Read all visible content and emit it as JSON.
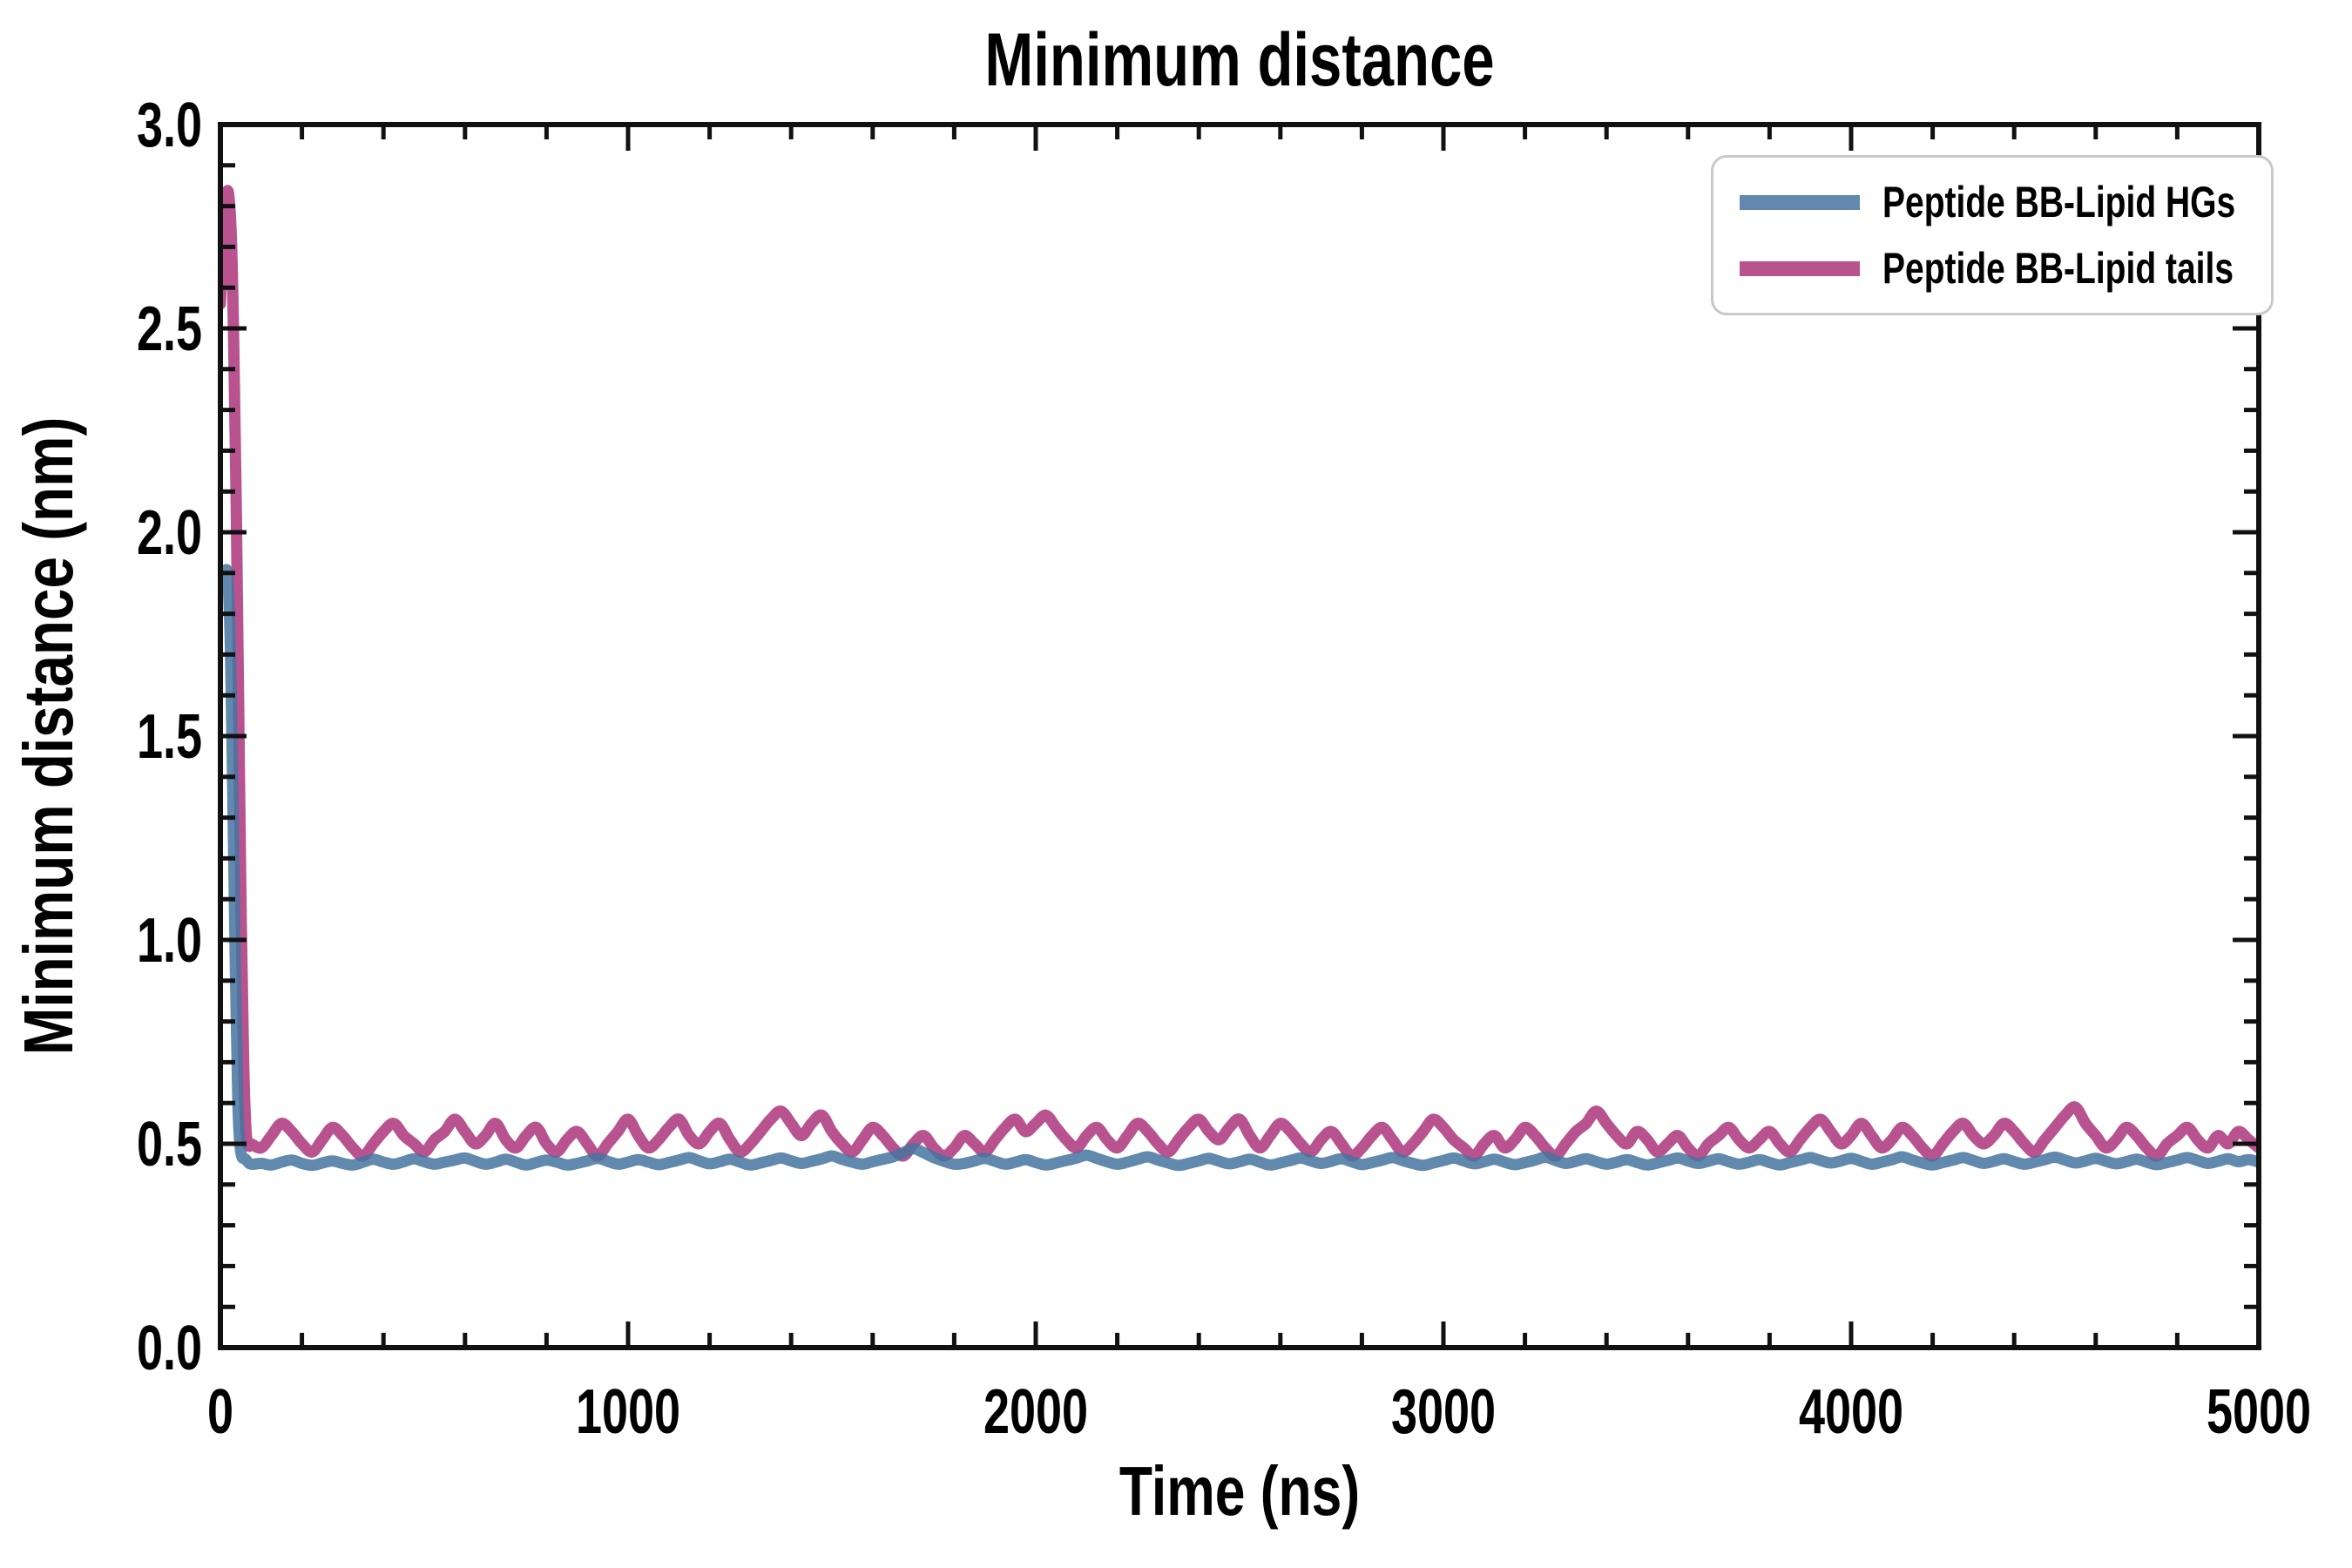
{
  "chart_data": {
    "type": "line",
    "title": "Minimum distance",
    "xlabel": "Time (ns)",
    "ylabel": "Minimum distance (nm)",
    "xlim": [
      0,
      5000
    ],
    "ylim": [
      0.0,
      3.0
    ],
    "x_major_ticks": [
      0,
      1000,
      2000,
      3000,
      4000,
      5000
    ],
    "x_tick_labels": [
      "0",
      "1000",
      "2000",
      "3000",
      "4000",
      "5000"
    ],
    "x_minor_step": 200,
    "y_major_ticks": [
      0.0,
      0.5,
      1.0,
      1.5,
      2.0,
      2.5,
      3.0
    ],
    "y_tick_labels": [
      "0.0",
      "0.5",
      "1.0",
      "1.5",
      "2.0",
      "2.5",
      "3.0"
    ],
    "y_minor_step": 0.1,
    "grid": false,
    "legend_position": "upper right",
    "axis_color": "#111111",
    "series": [
      {
        "name": "Peptide BB-Lipid tails",
        "color": "#b8538f",
        "opacity": 1.0,
        "transient_t": [
          0,
          8,
          14,
          20,
          27,
          33,
          39,
          45,
          51,
          57,
          63,
          70
        ],
        "transient_v": [
          2.56,
          2.74,
          2.82,
          2.83,
          2.72,
          2.45,
          2.05,
          1.55,
          1.05,
          0.7,
          0.53,
          0.495
        ],
        "steady_t0": 75,
        "steady_dt": 25,
        "steady_v": [
          0.5,
          0.49,
          0.52,
          0.55,
          0.53,
          0.5,
          0.48,
          0.51,
          0.54,
          0.52,
          0.49,
          0.47,
          0.5,
          0.53,
          0.55,
          0.52,
          0.5,
          0.48,
          0.51,
          0.53,
          0.56,
          0.53,
          0.5,
          0.52,
          0.55,
          0.51,
          0.49,
          0.52,
          0.54,
          0.5,
          0.48,
          0.51,
          0.53,
          0.5,
          0.47,
          0.5,
          0.53,
          0.56,
          0.52,
          0.49,
          0.51,
          0.54,
          0.56,
          0.52,
          0.5,
          0.53,
          0.55,
          0.51,
          0.48,
          0.5,
          0.53,
          0.56,
          0.58,
          0.55,
          0.52,
          0.55,
          0.57,
          0.53,
          0.5,
          0.48,
          0.51,
          0.54,
          0.52,
          0.49,
          0.47,
          0.5,
          0.52,
          0.49,
          0.47,
          0.49,
          0.52,
          0.5,
          0.48,
          0.51,
          0.54,
          0.56,
          0.53,
          0.55,
          0.57,
          0.54,
          0.51,
          0.49,
          0.52,
          0.54,
          0.51,
          0.49,
          0.52,
          0.55,
          0.53,
          0.5,
          0.48,
          0.51,
          0.54,
          0.56,
          0.53,
          0.51,
          0.54,
          0.56,
          0.52,
          0.49,
          0.52,
          0.55,
          0.53,
          0.5,
          0.48,
          0.51,
          0.53,
          0.5,
          0.47,
          0.49,
          0.52,
          0.54,
          0.51,
          0.48,
          0.5,
          0.53,
          0.56,
          0.54,
          0.51,
          0.49,
          0.47,
          0.5,
          0.52,
          0.49,
          0.51,
          0.54,
          0.52,
          0.49,
          0.47,
          0.5,
          0.53,
          0.55,
          0.58,
          0.55,
          0.52,
          0.5,
          0.53,
          0.51,
          0.48,
          0.5,
          0.52,
          0.49,
          0.47,
          0.5,
          0.52,
          0.54,
          0.51,
          0.49,
          0.51,
          0.53,
          0.5,
          0.48,
          0.51,
          0.54,
          0.56,
          0.53,
          0.5,
          0.52,
          0.55,
          0.52,
          0.49,
          0.51,
          0.54,
          0.52,
          0.49,
          0.47,
          0.5,
          0.53,
          0.55,
          0.52,
          0.5,
          0.52,
          0.55,
          0.53,
          0.5,
          0.48,
          0.51,
          0.54,
          0.57,
          0.59,
          0.55,
          0.52,
          0.49,
          0.51,
          0.54,
          0.52,
          0.49,
          0.47,
          0.5,
          0.52,
          0.54,
          0.51,
          0.49,
          0.52,
          0.5,
          0.53,
          0.51,
          0.49
        ]
      },
      {
        "name": "Peptide BB-Lipid HGs",
        "color": "#44749f",
        "opacity": 0.85,
        "transient_t": [
          0,
          10,
          18,
          25,
          31,
          37,
          43,
          50,
          62
        ],
        "transient_v": [
          1.88,
          1.9,
          1.89,
          1.7,
          1.32,
          0.92,
          0.6,
          0.48,
          0.462
        ],
        "steady_t0": 75,
        "steady_dt": 25,
        "steady_v": [
          0.45,
          0.452,
          0.448,
          0.455,
          0.46,
          0.452,
          0.447,
          0.453,
          0.458,
          0.452,
          0.448,
          0.455,
          0.462,
          0.455,
          0.45,
          0.456,
          0.463,
          0.456,
          0.45,
          0.455,
          0.46,
          0.465,
          0.457,
          0.45,
          0.455,
          0.462,
          0.455,
          0.448,
          0.454,
          0.46,
          0.455,
          0.448,
          0.452,
          0.458,
          0.464,
          0.457,
          0.45,
          0.455,
          0.461,
          0.455,
          0.449,
          0.454,
          0.46,
          0.466,
          0.458,
          0.451,
          0.456,
          0.462,
          0.455,
          0.448,
          0.453,
          0.459,
          0.465,
          0.458,
          0.452,
          0.457,
          0.463,
          0.47,
          0.462,
          0.455,
          0.45,
          0.456,
          0.462,
          0.468,
          0.478,
          0.488,
          0.478,
          0.466,
          0.457,
          0.45,
          0.452,
          0.458,
          0.464,
          0.457,
          0.45,
          0.455,
          0.461,
          0.454,
          0.448,
          0.453,
          0.459,
          0.465,
          0.472,
          0.464,
          0.456,
          0.45,
          0.455,
          0.462,
          0.468,
          0.46,
          0.453,
          0.447,
          0.452,
          0.458,
          0.464,
          0.457,
          0.451,
          0.456,
          0.462,
          0.455,
          0.448,
          0.453,
          0.459,
          0.465,
          0.458,
          0.452,
          0.457,
          0.463,
          0.456,
          0.449,
          0.454,
          0.46,
          0.466,
          0.459,
          0.452,
          0.447,
          0.453,
          0.459,
          0.465,
          0.458,
          0.451,
          0.456,
          0.462,
          0.455,
          0.449,
          0.454,
          0.46,
          0.467,
          0.459,
          0.452,
          0.457,
          0.463,
          0.456,
          0.45,
          0.455,
          0.461,
          0.454,
          0.448,
          0.453,
          0.459,
          0.465,
          0.458,
          0.452,
          0.457,
          0.463,
          0.456,
          0.45,
          0.455,
          0.461,
          0.454,
          0.448,
          0.454,
          0.46,
          0.466,
          0.459,
          0.453,
          0.458,
          0.464,
          0.457,
          0.45,
          0.455,
          0.461,
          0.468,
          0.46,
          0.453,
          0.448,
          0.454,
          0.46,
          0.466,
          0.459,
          0.452,
          0.457,
          0.463,
          0.456,
          0.45,
          0.455,
          0.461,
          0.467,
          0.46,
          0.453,
          0.458,
          0.464,
          0.457,
          0.451,
          0.456,
          0.462,
          0.455,
          0.449,
          0.454,
          0.46,
          0.466,
          0.459,
          0.452,
          0.457,
          0.463,
          0.456,
          0.461,
          0.455
        ]
      }
    ],
    "legend_order": [
      "Peptide BB-Lipid HGs",
      "Peptide BB-Lipid tails"
    ]
  }
}
